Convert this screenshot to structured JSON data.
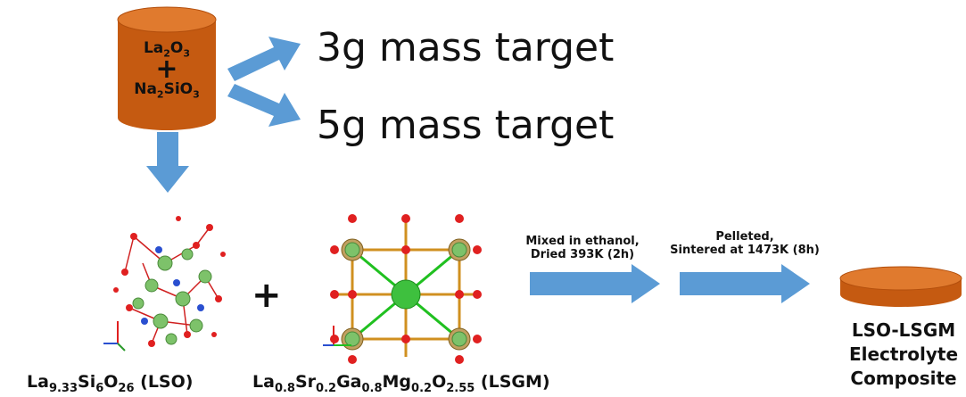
{
  "reactants": {
    "line1_base": "La",
    "line1_sub1": "2",
    "line1_mid": "O",
    "line1_sub2": "3",
    "plus": "+",
    "line2_base": "Na",
    "line2_sub1": "2",
    "line2_mid": "SiO",
    "line2_sub2": "3"
  },
  "targets": [
    "3g mass target",
    "5g mass target"
  ],
  "lso_formula": {
    "el1": "La",
    "n1": "9.33",
    "el2": "Si",
    "n2": "6",
    "el3": "O",
    "n3": "26",
    "suffix": " (LSO)"
  },
  "lsgm_formula": {
    "el1": "La",
    "n1": "0.8",
    "el2": "Sr",
    "n2": "0.2",
    "el3": "Ga",
    "n3": "0.8",
    "el4": "Mg",
    "n4": "0.2",
    "el5": "O",
    "n5": "2.55",
    "suffix": " (LSGM)"
  },
  "combine_plus": "+",
  "steps": [
    {
      "line1": "Mixed in ethanol,",
      "line2": "Dried 393K (2h)"
    },
    {
      "line1": "Pelleted,",
      "line2": "Sintered at 1473K (8h)"
    }
  ],
  "result": [
    "LSO-LSGM",
    "Electrolyte",
    "Composite"
  ],
  "colors": {
    "cylinder": "#c55a11",
    "cylinder_top": "#e07a2e",
    "arrow": "#5b9bd5",
    "atom_green": "#7dc26a",
    "atom_red": "#e02020",
    "atom_blue": "#2a4fd0",
    "bond": "#d02020"
  }
}
